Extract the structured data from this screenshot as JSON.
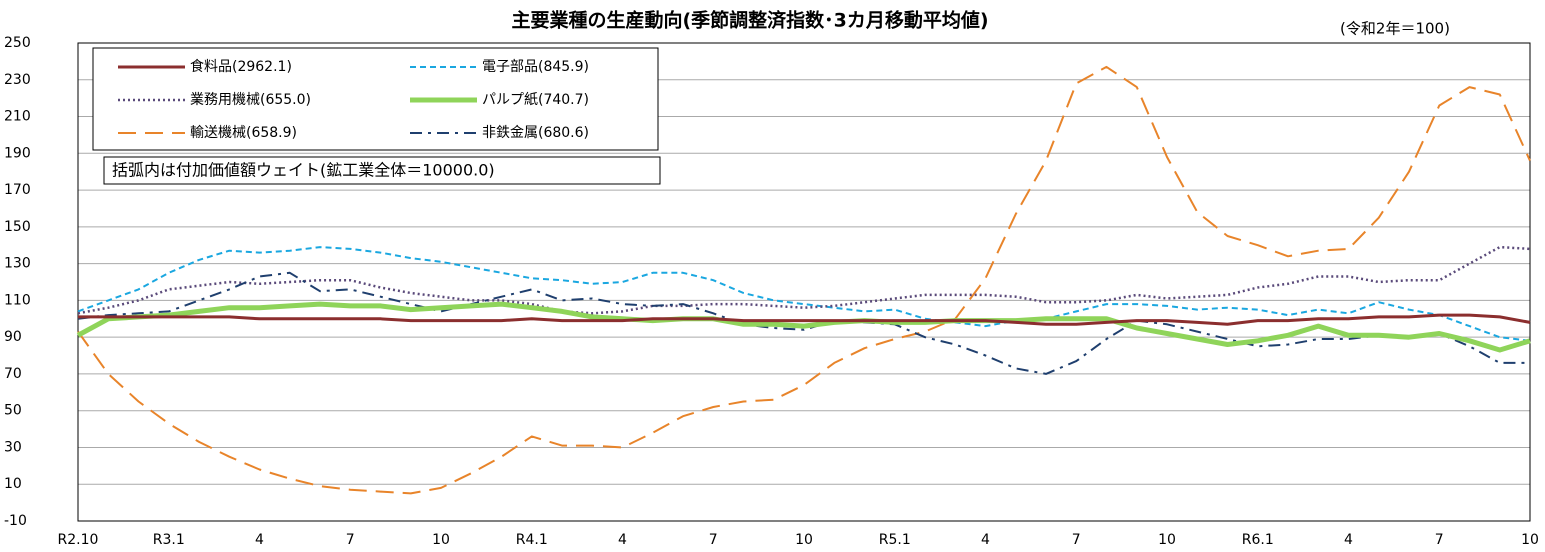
{
  "chart_data": {
    "type": "line",
    "title": "主要業種の生産動向(季節調整済指数･3カ月移動平均値)",
    "subtitle": "(令和2年＝100)",
    "annotation": "括弧内は付加価値額ウェイト(鉱工業全体＝10000.0)",
    "categories": [
      "R2.10",
      null,
      null,
      "R3.1",
      null,
      null,
      "4",
      null,
      null,
      "7",
      null,
      null,
      "10",
      null,
      null,
      "R4.1",
      null,
      null,
      "4",
      null,
      null,
      "7",
      null,
      null,
      "10",
      null,
      null,
      "R5.1",
      null,
      null,
      "4",
      null,
      null,
      "7",
      null,
      null,
      "10",
      null,
      null,
      "R6.1",
      null,
      null,
      "4",
      null,
      null,
      "7",
      null,
      null,
      "10"
    ],
    "ylim": [
      -10,
      250
    ],
    "yticks": [
      -10,
      10,
      30,
      50,
      70,
      90,
      110,
      130,
      150,
      170,
      190,
      210,
      230,
      250
    ],
    "grid": true,
    "legend": "upper left",
    "series": [
      {
        "name": "食料品(2962.1)",
        "color": "#8b2e2e",
        "style": "solid",
        "values": [
          101,
          101,
          101,
          101,
          101,
          101,
          100,
          100,
          100,
          100,
          100,
          99,
          99,
          99,
          99,
          100,
          99,
          99,
          99,
          100,
          100,
          100,
          99,
          99,
          99,
          99,
          99,
          99,
          99,
          99,
          99,
          98,
          97,
          97,
          98,
          99,
          99,
          98,
          97,
          99,
          99,
          100,
          100,
          101,
          101,
          102,
          102,
          101,
          98
        ]
      },
      {
        "name": "電子部品(845.9)",
        "color": "#1aa7e0",
        "style": "dashed",
        "values": [
          104,
          110,
          116,
          125,
          132,
          137,
          136,
          137,
          139,
          138,
          136,
          133,
          131,
          128,
          125,
          122,
          121,
          119,
          120,
          125,
          125,
          121,
          114,
          110,
          108,
          106,
          104,
          105,
          100,
          98,
          96,
          99,
          100,
          104,
          108,
          108,
          107,
          105,
          106,
          105,
          102,
          105,
          103,
          109,
          105,
          102,
          96,
          90,
          88
        ]
      },
      {
        "name": "業務用機械(655.0)",
        "color": "#5a4a7a",
        "style": "dotted",
        "values": [
          103,
          106,
          110,
          116,
          118,
          120,
          119,
          120,
          121,
          121,
          117,
          114,
          112,
          110,
          110,
          108,
          104,
          103,
          104,
          107,
          107,
          108,
          108,
          107,
          106,
          107,
          109,
          111,
          113,
          113,
          113,
          112,
          109,
          109,
          110,
          113,
          111,
          112,
          113,
          117,
          119,
          123,
          123,
          120,
          121,
          121,
          130,
          139,
          138
        ]
      },
      {
        "name": "パルプ紙(740.7)",
        "color": "#8fd45a",
        "style": "thick",
        "values": [
          91,
          100,
          101,
          102,
          104,
          106,
          106,
          107,
          108,
          107,
          107,
          105,
          106,
          107,
          108,
          106,
          104,
          101,
          100,
          99,
          100,
          100,
          97,
          97,
          96,
          98,
          99,
          98,
          98,
          99,
          99,
          99,
          100,
          100,
          100,
          95,
          92,
          89,
          86,
          88,
          91,
          96,
          91,
          91,
          90,
          92,
          88,
          83,
          88
        ]
      },
      {
        "name": "輸送機械(658.9)",
        "color": "#e8842a",
        "style": "long-dash",
        "values": [
          93,
          70,
          55,
          43,
          33,
          25,
          18,
          13,
          9,
          7,
          6,
          5,
          8,
          16,
          25,
          36,
          31,
          31,
          30,
          38,
          47,
          52,
          55,
          56,
          64,
          76,
          84,
          89,
          93,
          100,
          122,
          157,
          186,
          228,
          237,
          226,
          188,
          158,
          145,
          140,
          134,
          137,
          138,
          155,
          180,
          216,
          226,
          222,
          186
        ]
      },
      {
        "name": "非鉄金属(680.6)",
        "color": "#1f3f6e",
        "style": "dash-dot",
        "values": [
          100,
          102,
          103,
          104,
          110,
          116,
          123,
          125,
          115,
          116,
          112,
          108,
          104,
          108,
          112,
          116,
          110,
          111,
          108,
          107,
          108,
          103,
          97,
          95,
          94,
          99,
          98,
          97,
          90,
          86,
          80,
          73,
          70,
          77,
          89,
          99,
          97,
          93,
          89,
          85,
          86,
          89,
          89,
          91,
          90,
          92,
          85,
          76,
          76
        ]
      }
    ]
  }
}
